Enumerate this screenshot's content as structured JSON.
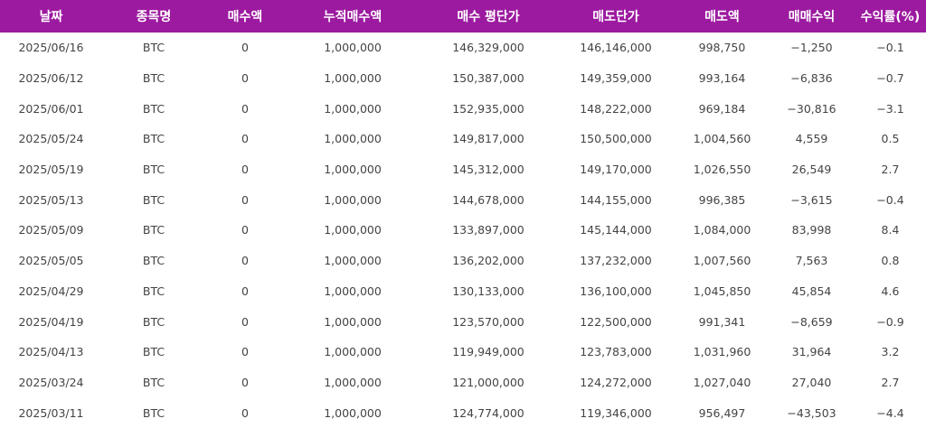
{
  "headers": [
    "날짜",
    "종목명",
    "매수액",
    "누적매수액",
    "매수 평단가",
    "매도단가",
    "매도액",
    "매매수익",
    "수익률(%)"
  ],
  "rows": [
    [
      "2025/06/16",
      "BTC",
      "0",
      "1,000,000",
      "146,329,000",
      "146,146,000",
      "998,750",
      "−1,250",
      "−0.1"
    ],
    [
      "2025/06/12",
      "BTC",
      "0",
      "1,000,000",
      "150,387,000",
      "149,359,000",
      "993,164",
      "−6,836",
      "−0.7"
    ],
    [
      "2025/06/01",
      "BTC",
      "0",
      "1,000,000",
      "152,935,000",
      "148,222,000",
      "969,184",
      "−30,816",
      "−3.1"
    ],
    [
      "2025/05/24",
      "BTC",
      "0",
      "1,000,000",
      "149,817,000",
      "150,500,000",
      "1,004,560",
      "4,559",
      "0.5"
    ],
    [
      "2025/05/19",
      "BTC",
      "0",
      "1,000,000",
      "145,312,000",
      "149,170,000",
      "1,026,550",
      "26,549",
      "2.7"
    ],
    [
      "2025/05/13",
      "BTC",
      "0",
      "1,000,000",
      "144,678,000",
      "144,155,000",
      "996,385",
      "−3,615",
      "−0.4"
    ],
    [
      "2025/05/09",
      "BTC",
      "0",
      "1,000,000",
      "133,897,000",
      "145,144,000",
      "1,084,000",
      "83,998",
      "8.4"
    ],
    [
      "2025/05/05",
      "BTC",
      "0",
      "1,000,000",
      "136,202,000",
      "137,232,000",
      "1,007,560",
      "7,563",
      "0.8"
    ],
    [
      "2025/04/29",
      "BTC",
      "0",
      "1,000,000",
      "130,133,000",
      "136,100,000",
      "1,045,850",
      "45,854",
      "4.6"
    ],
    [
      "2025/04/19",
      "BTC",
      "0",
      "1,000,000",
      "123,570,000",
      "122,500,000",
      "991,341",
      "−8,659",
      "−0.9"
    ],
    [
      "2025/04/13",
      "BTC",
      "0",
      "1,000,000",
      "119,949,000",
      "123,783,000",
      "1,031,960",
      "31,964",
      "3.2"
    ],
    [
      "2025/03/24",
      "BTC",
      "0",
      "1,000,000",
      "121,000,000",
      "124,272,000",
      "1,027,040",
      "27,040",
      "2.7"
    ],
    [
      "2025/03/11",
      "BTC",
      "0",
      "1,000,000",
      "124,774,000",
      "119,346,000",
      "956,497",
      "−43,503",
      "−4.4"
    ]
  ],
  "colors": {
    "header_bg": "#9c1aa0",
    "header_text": "#ffffff",
    "cell_text": "#444444"
  }
}
